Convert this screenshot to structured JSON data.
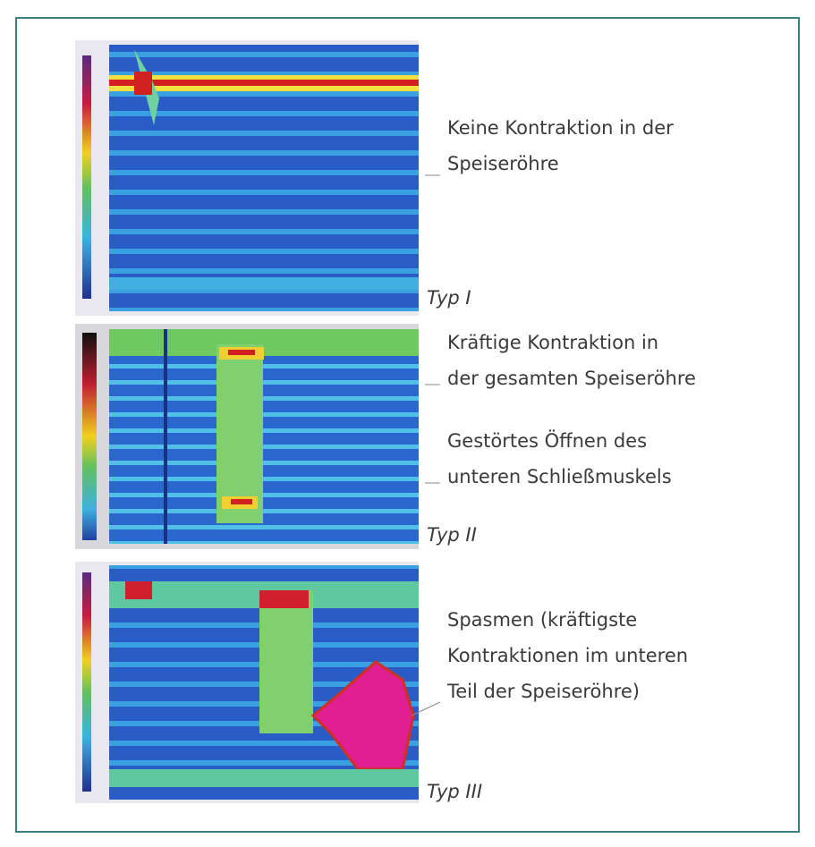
{
  "panels": [
    {
      "lines": [
        "Keine Kontraktion in der",
        "Speiseröhre"
      ],
      "type_label": "Typ I"
    },
    {
      "lines": [
        "Kräftige Kontraktion in",
        "der gesamten Speiseröhre",
        "Gestörtes Öffnen des",
        "unteren Schließmuskels"
      ],
      "type_label": "Typ II"
    },
    {
      "lines": [
        "Spasmen (kräftigste",
        "Kontraktionen im unteren",
        "Teil der Speiseröhre)"
      ],
      "type_label": "Typ III"
    }
  ]
}
